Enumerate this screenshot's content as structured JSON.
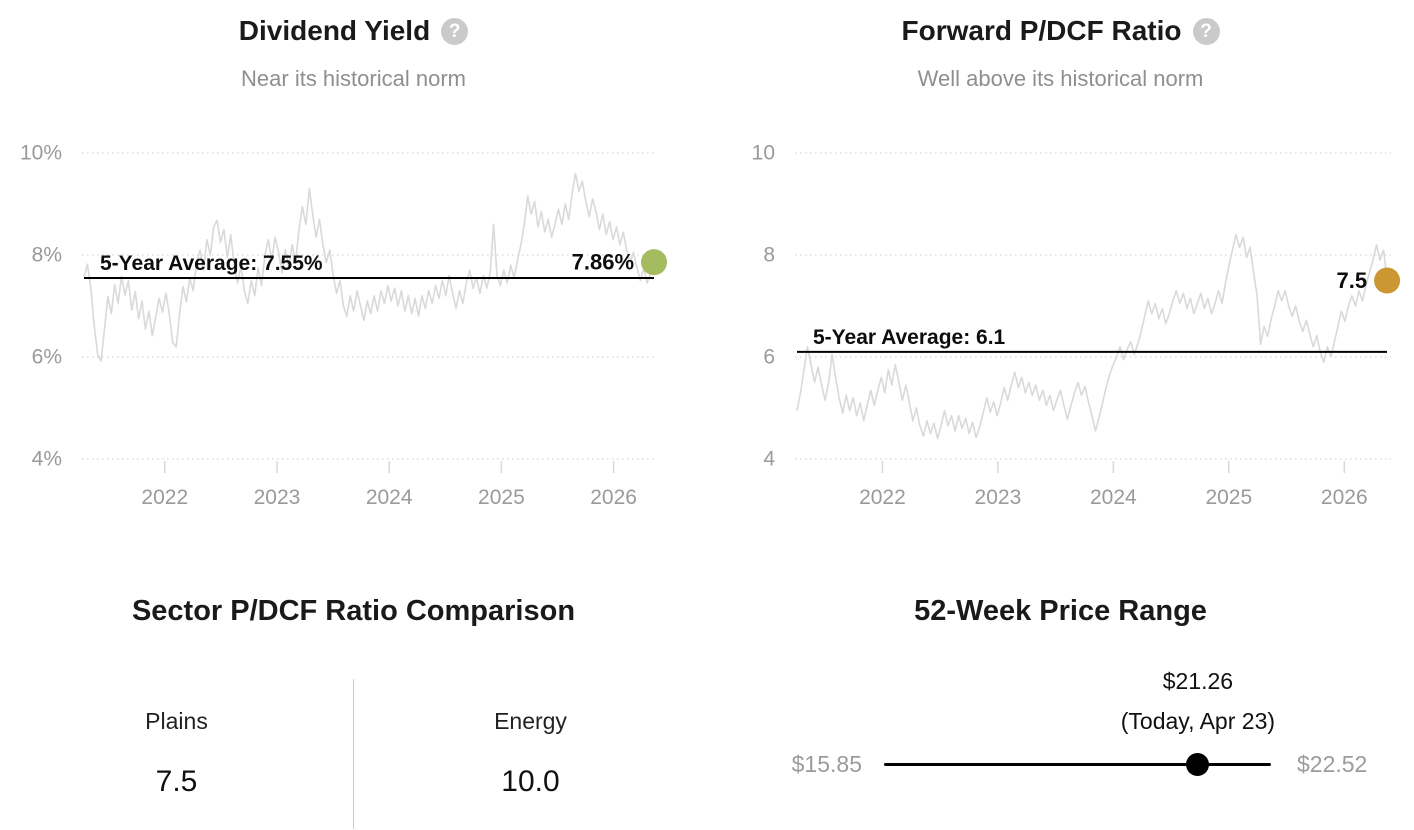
{
  "icons": {
    "help": "?"
  },
  "colors": {
    "series_line": "#d9d9d9",
    "gridline": "#cdcdcd",
    "axis_label": "#9a9a9a",
    "average_line": "#000000",
    "dividend_marker": "#a4bc5f",
    "pdcf_marker": "#cc9633",
    "price_marker": "#000000"
  },
  "chart_data": [
    {
      "type": "line",
      "title": "Dividend Yield",
      "subtitle": "Near its historical norm",
      "ylim": [
        4,
        10
      ],
      "yticks": [
        {
          "value": 10,
          "label": "10%"
        },
        {
          "value": 8,
          "label": "8%"
        },
        {
          "value": 6,
          "label": "6%"
        },
        {
          "value": 4,
          "label": "4%"
        }
      ],
      "xticks": [
        2022,
        2023,
        2024,
        2025,
        2026
      ],
      "x_range": [
        2021.28,
        2026.36
      ],
      "grid": "dotted-horizontal",
      "average": {
        "value": 7.55,
        "label": "5-Year Average: 7.55%"
      },
      "current": {
        "value": 7.86,
        "label": "7.86%",
        "marker_color": "#a4bc5f"
      },
      "series": {
        "name": "Dividend Yield %",
        "x_start": 2021.28,
        "x_step": 0.03042,
        "values": [
          7.55,
          7.82,
          7.35,
          6.62,
          6.05,
          5.92,
          6.55,
          7.18,
          6.85,
          7.42,
          7.05,
          7.58,
          7.22,
          7.5,
          6.92,
          7.28,
          6.75,
          7.1,
          6.55,
          6.9,
          6.42,
          6.78,
          7.15,
          6.88,
          7.25,
          6.85,
          6.28,
          6.2,
          6.85,
          7.38,
          7.08,
          7.55,
          7.3,
          7.85,
          8.1,
          7.7,
          8.3,
          8.0,
          8.55,
          8.68,
          8.25,
          8.5,
          7.95,
          8.4,
          7.8,
          7.45,
          7.78,
          7.3,
          7.05,
          7.5,
          7.2,
          7.75,
          7.4,
          8.0,
          8.3,
          7.9,
          8.35,
          8.05,
          7.65,
          8.1,
          7.75,
          8.2,
          7.85,
          8.5,
          8.95,
          8.6,
          9.3,
          8.8,
          8.35,
          8.7,
          8.2,
          7.85,
          8.1,
          7.6,
          7.25,
          7.5,
          7.0,
          6.8,
          7.2,
          6.9,
          7.3,
          7.0,
          6.72,
          7.1,
          6.85,
          7.2,
          6.9,
          7.3,
          7.05,
          7.4,
          7.1,
          7.35,
          7.0,
          7.3,
          6.9,
          7.2,
          6.85,
          7.15,
          6.8,
          7.2,
          6.95,
          7.3,
          7.05,
          7.4,
          7.15,
          7.5,
          7.2,
          7.6,
          7.25,
          6.95,
          7.3,
          7.05,
          7.45,
          7.7,
          7.35,
          7.55,
          7.25,
          7.6,
          7.35,
          7.65,
          8.6,
          7.6,
          7.4,
          7.7,
          7.45,
          7.8,
          7.55,
          7.9,
          8.2,
          8.6,
          9.15,
          8.8,
          9.05,
          8.55,
          8.85,
          8.45,
          8.7,
          8.35,
          8.6,
          8.9,
          8.6,
          9.0,
          8.7,
          9.2,
          9.6,
          9.25,
          9.45,
          9.05,
          8.75,
          9.1,
          8.85,
          8.5,
          8.8,
          8.4,
          8.65,
          8.3,
          8.55,
          8.2,
          8.45,
          8.1,
          7.85,
          8.05,
          7.75,
          7.5,
          7.75,
          7.45,
          7.65,
          7.86
        ]
      }
    },
    {
      "type": "line",
      "title": "Forward P/DCF Ratio",
      "subtitle": "Well above its historical norm",
      "ylim": [
        4,
        10
      ],
      "yticks": [
        {
          "value": 10,
          "label": "10"
        },
        {
          "value": 8,
          "label": "8"
        },
        {
          "value": 6,
          "label": "6"
        },
        {
          "value": 4,
          "label": "4"
        }
      ],
      "xticks": [
        2022,
        2023,
        2024,
        2025,
        2026
      ],
      "x_range": [
        2021.26,
        2026.37
      ],
      "grid": "dotted-horizontal",
      "average": {
        "value": 6.1,
        "label": "5-Year Average: 6.1"
      },
      "current": {
        "value": 7.5,
        "label": "7.5",
        "marker_color": "#cc9633"
      },
      "series": {
        "name": "Forward P/DCF Ratio",
        "x_start": 2021.26,
        "x_step": 0.03042,
        "values": [
          4.95,
          5.3,
          5.75,
          6.2,
          5.85,
          5.5,
          5.8,
          5.45,
          5.15,
          5.5,
          6.05,
          5.6,
          5.2,
          4.9,
          5.25,
          4.95,
          5.2,
          4.85,
          5.1,
          4.75,
          5.05,
          5.35,
          5.05,
          5.35,
          5.6,
          5.3,
          5.75,
          5.45,
          5.85,
          5.5,
          5.15,
          5.45,
          5.1,
          4.75,
          5.0,
          4.65,
          4.45,
          4.75,
          4.5,
          4.7,
          4.4,
          4.65,
          4.95,
          4.65,
          4.85,
          4.55,
          4.85,
          4.6,
          4.8,
          4.5,
          4.72,
          4.42,
          4.62,
          4.9,
          5.2,
          4.92,
          5.12,
          4.85,
          5.1,
          5.4,
          5.15,
          5.45,
          5.7,
          5.4,
          5.6,
          5.3,
          5.5,
          5.25,
          5.45,
          5.15,
          5.35,
          5.05,
          5.25,
          4.95,
          5.15,
          5.35,
          5.05,
          4.78,
          5.05,
          5.3,
          5.5,
          5.25,
          5.42,
          5.12,
          4.85,
          4.55,
          4.82,
          5.1,
          5.4,
          5.65,
          5.85,
          6.0,
          6.2,
          5.95,
          6.15,
          6.3,
          6.05,
          6.25,
          6.5,
          6.8,
          7.1,
          6.85,
          7.05,
          6.75,
          6.95,
          6.65,
          6.85,
          7.1,
          7.3,
          7.05,
          7.25,
          6.95,
          7.15,
          6.85,
          7.05,
          7.25,
          6.95,
          7.15,
          6.85,
          7.05,
          7.3,
          7.05,
          7.45,
          7.8,
          8.1,
          8.4,
          8.15,
          8.35,
          7.95,
          8.15,
          7.65,
          7.2,
          6.25,
          6.6,
          6.4,
          6.75,
          7.0,
          7.3,
          7.1,
          7.3,
          7.0,
          6.8,
          7.0,
          6.7,
          6.5,
          6.72,
          6.45,
          6.2,
          6.42,
          6.1,
          5.9,
          6.2,
          6.0,
          6.3,
          6.6,
          6.9,
          6.7,
          7.0,
          7.2,
          7.0,
          7.3,
          7.1,
          7.4,
          7.65,
          7.9,
          8.2,
          7.9,
          8.1,
          7.5
        ]
      }
    },
    {
      "type": "table",
      "title": "Sector P/DCF Ratio Comparison",
      "columns": [
        {
          "label": "Plains",
          "value": "7.5"
        },
        {
          "label": "Energy",
          "value": "10.0"
        }
      ]
    },
    {
      "type": "range",
      "title": "52-Week Price Range",
      "low": 15.85,
      "high": 22.52,
      "current": 21.26,
      "low_label": "$15.85",
      "high_label": "$22.52",
      "current_label": "$21.26",
      "current_sub_label": "(Today, Apr 23)"
    }
  ]
}
